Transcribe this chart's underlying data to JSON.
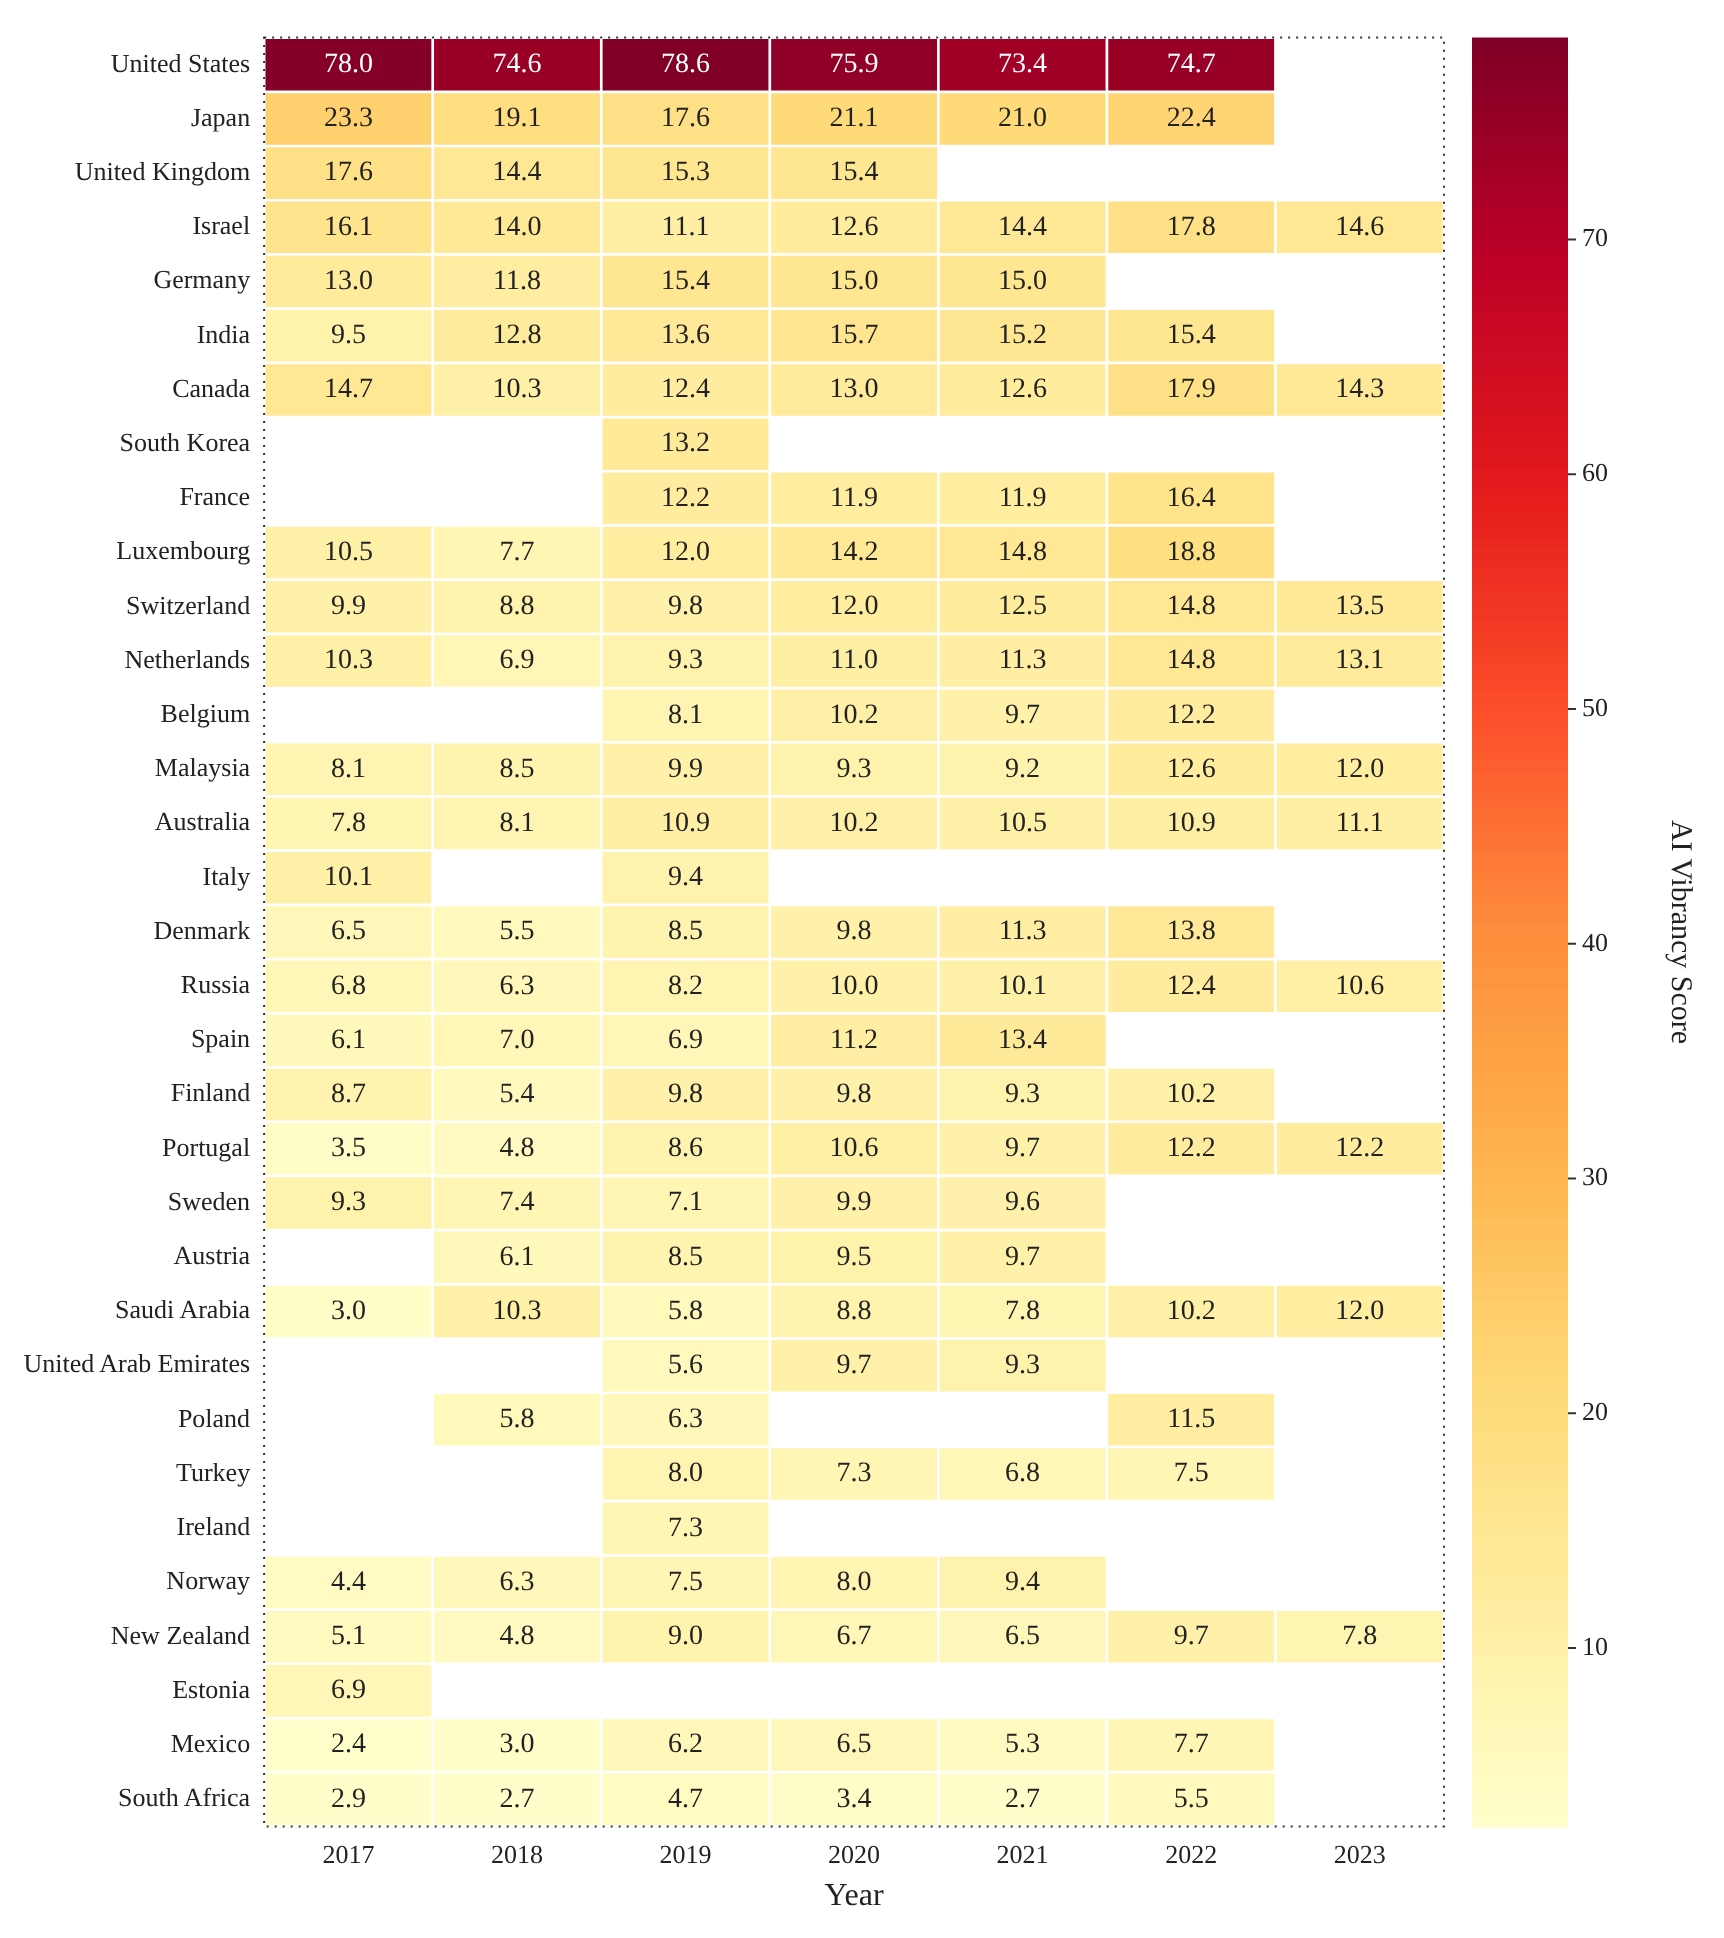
{
  "chart_data": {
    "type": "heatmap",
    "xlabel": "Year",
    "clabel": "AI Vibrancy Score",
    "cell_labels": [
      [
        "78.0",
        "74.6",
        "78.6",
        "75.9",
        "73.4",
        "74.7",
        null
      ],
      [
        "23.3",
        "19.1",
        "17.6",
        "21.1",
        "21.0",
        "22.4",
        null
      ],
      [
        "17.6",
        "14.4",
        "15.3",
        "15.4",
        null,
        null,
        null
      ],
      [
        "16.1",
        "14.0",
        "11.1",
        "12.6",
        "14.4",
        "17.8",
        "14.6"
      ],
      [
        "13.0",
        "11.8",
        "15.4",
        "15.0",
        "15.0",
        null,
        null
      ],
      [
        "9.5",
        "12.8",
        "13.6",
        "15.7",
        "15.2",
        "15.4",
        null
      ],
      [
        "14.7",
        "10.3",
        "12.4",
        "13.0",
        "12.6",
        "17.9",
        "14.3"
      ],
      [
        null,
        null,
        "13.2",
        null,
        null,
        null,
        null
      ],
      [
        null,
        null,
        "12.2",
        "11.9",
        "11.9",
        "16.4",
        null
      ],
      [
        "10.5",
        "7.7",
        "12.0",
        "14.2",
        "14.8",
        "18.8",
        null
      ],
      [
        "9.9",
        "8.8",
        "9.8",
        "12.0",
        "12.5",
        "14.8",
        "13.5"
      ],
      [
        "10.3",
        "6.9",
        "9.3",
        "11.0",
        "11.3",
        "14.8",
        "13.1"
      ],
      [
        null,
        null,
        "8.1",
        "10.2",
        "9.7",
        "12.2",
        null
      ],
      [
        "8.1",
        "8.5",
        "9.9",
        "9.3",
        "9.2",
        "12.6",
        "12.0"
      ],
      [
        "7.8",
        "8.1",
        "10.9",
        "10.2",
        "10.5",
        "10.9",
        "11.1"
      ],
      [
        "10.1",
        null,
        "9.4",
        null,
        null,
        null,
        null
      ],
      [
        "6.5",
        "5.5",
        "8.5",
        "9.8",
        "11.3",
        "13.8",
        null
      ],
      [
        "6.8",
        "6.3",
        "8.2",
        "10.0",
        "10.1",
        "12.4",
        "10.6"
      ],
      [
        "6.1",
        "7.0",
        "6.9",
        "11.2",
        "13.4",
        null,
        null
      ],
      [
        "8.7",
        "5.4",
        "9.8",
        "9.8",
        "9.3",
        "10.2",
        null
      ],
      [
        "3.5",
        "4.8",
        "8.6",
        "10.6",
        "9.7",
        "12.2",
        "12.2"
      ],
      [
        "9.3",
        "7.4",
        "7.1",
        "9.9",
        "9.6",
        null,
        null
      ],
      [
        null,
        "6.1",
        "8.5",
        "9.5",
        "9.7",
        null,
        null
      ],
      [
        "3.0",
        "10.3",
        "5.8",
        "8.8",
        "7.8",
        "10.2",
        "12.0"
      ],
      [
        null,
        null,
        "5.6",
        "9.7",
        "9.3",
        null,
        null
      ],
      [
        null,
        "5.8",
        "6.3",
        null,
        null,
        "11.5",
        null
      ],
      [
        null,
        null,
        "8.0",
        "7.3",
        "6.8",
        "7.5",
        null
      ],
      [
        null,
        null,
        "7.3",
        null,
        null,
        null,
        null
      ],
      [
        "4.4",
        "6.3",
        "7.5",
        "8.0",
        "9.4",
        null,
        null
      ],
      [
        "5.1",
        "4.8",
        "9.0",
        "6.7",
        "6.5",
        "9.7",
        "7.8"
      ],
      [
        "6.9",
        null,
        null,
        null,
        null,
        null,
        null
      ],
      [
        "2.4",
        "3.0",
        "6.2",
        "6.5",
        "5.3",
        "7.7",
        null
      ],
      [
        "2.9",
        "2.7",
        "4.7",
        "3.4",
        "2.7",
        "5.5",
        null
      ]
    ],
    "clim": [
      2.4,
      78.6
    ],
    "cticks": [
      10,
      20,
      30,
      40,
      50,
      60,
      70
    ],
    "categories": [
      "2017",
      "2018",
      "2019",
      "2020",
      "2021",
      "2022",
      "2023"
    ],
    "y_categories": [
      "United States",
      "Japan",
      "United Kingdom",
      "Israel",
      "Germany",
      "India",
      "Canada",
      "South Korea",
      "France",
      "Luxembourg",
      "Switzerland",
      "Netherlands",
      "Belgium",
      "Malaysia",
      "Australia",
      "Italy",
      "Denmark",
      "Russia",
      "Spain",
      "Finland",
      "Portugal",
      "Sweden",
      "Austria",
      "Saudi Arabia",
      "United Arab Emirates",
      "Poland",
      "Turkey",
      "Ireland",
      "Norway",
      "New Zealand",
      "Estonia",
      "Mexico",
      "South Africa"
    ],
    "cells": [
      [
        78.0,
        74.6,
        78.6,
        75.9,
        73.4,
        74.7,
        null
      ],
      [
        23.3,
        19.1,
        17.6,
        21.1,
        21.0,
        22.4,
        null
      ],
      [
        17.6,
        14.4,
        15.3,
        15.4,
        null,
        null,
        null
      ],
      [
        16.1,
        14.0,
        11.1,
        12.6,
        14.4,
        17.8,
        14.6
      ],
      [
        13.0,
        11.8,
        15.4,
        15.0,
        15.0,
        null,
        null
      ],
      [
        9.5,
        12.8,
        13.6,
        15.7,
        15.2,
        15.4,
        null
      ],
      [
        14.7,
        10.3,
        12.4,
        13.0,
        12.6,
        17.9,
        14.3
      ],
      [
        null,
        null,
        13.2,
        null,
        null,
        null,
        null
      ],
      [
        null,
        null,
        12.2,
        11.9,
        11.9,
        16.4,
        null
      ],
      [
        10.5,
        7.7,
        12.0,
        14.2,
        14.8,
        18.8,
        null
      ],
      [
        9.9,
        8.8,
        9.8,
        12.0,
        12.5,
        14.8,
        13.5
      ],
      [
        10.3,
        6.9,
        9.3,
        11.0,
        11.3,
        14.8,
        13.1
      ],
      [
        null,
        null,
        8.1,
        10.2,
        9.7,
        12.2,
        null
      ],
      [
        8.1,
        8.5,
        9.9,
        9.3,
        9.2,
        12.6,
        12.0
      ],
      [
        7.8,
        8.1,
        10.9,
        10.2,
        10.5,
        10.9,
        11.1
      ],
      [
        10.1,
        null,
        9.4,
        null,
        null,
        null,
        null
      ],
      [
        6.5,
        5.5,
        8.5,
        9.8,
        11.3,
        13.8,
        null
      ],
      [
        6.8,
        6.3,
        8.2,
        10.0,
        10.1,
        12.4,
        10.6
      ],
      [
        6.1,
        7.0,
        6.9,
        11.2,
        13.4,
        null,
        null
      ],
      [
        8.7,
        5.4,
        9.8,
        9.8,
        9.3,
        10.2,
        null
      ],
      [
        3.5,
        4.8,
        8.6,
        10.6,
        9.7,
        12.2,
        12.2
      ],
      [
        9.3,
        7.4,
        7.1,
        9.9,
        9.6,
        null,
        null
      ],
      [
        null,
        6.1,
        8.5,
        9.5,
        9.7,
        null,
        null
      ],
      [
        3.0,
        10.3,
        5.8,
        8.8,
        7.8,
        10.2,
        12.0
      ],
      [
        null,
        null,
        5.6,
        9.7,
        9.3,
        null,
        null
      ],
      [
        null,
        5.8,
        6.3,
        null,
        null,
        11.5,
        null
      ],
      [
        null,
        null,
        8.0,
        7.3,
        6.8,
        7.5,
        null
      ],
      [
        null,
        null,
        7.3,
        null,
        null,
        null,
        null
      ],
      [
        4.4,
        6.3,
        7.5,
        8.0,
        9.4,
        null,
        null
      ],
      [
        5.1,
        4.8,
        9.0,
        6.7,
        6.5,
        9.7,
        7.8
      ],
      [
        6.9,
        null,
        null,
        null,
        null,
        null,
        null
      ],
      [
        2.4,
        3.0,
        6.2,
        6.5,
        5.3,
        7.7,
        null
      ],
      [
        2.9,
        2.7,
        4.7,
        3.4,
        2.7,
        5.5,
        null
      ]
    ]
  }
}
